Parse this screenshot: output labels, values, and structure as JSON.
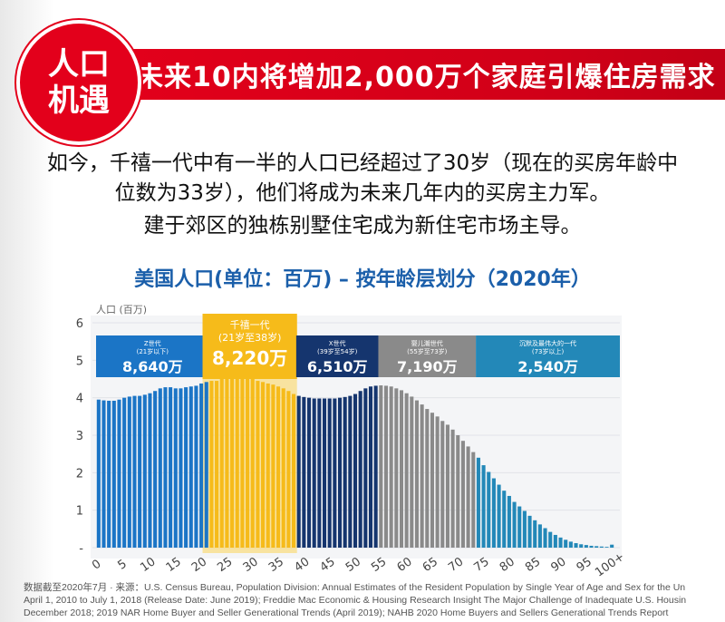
{
  "header": {
    "badge_line1": "人口",
    "badge_line2": "机遇",
    "title": "未来10内将增加2,000万个家庭引爆住房需求"
  },
  "intro": {
    "line1": "如今，千禧一代中有一半的人口已经超过了30岁（现在的买房年龄中",
    "line2": "位数为33岁），他们将成为未来几年内的买房主力军。",
    "line3": "建于郊区的独栋别墅住宅成为新住宅市场主导。"
  },
  "chart_data": {
    "type": "bar",
    "title": "美国人口(单位：百万) – 按年龄层划分（2020年）",
    "ylabel": "人口 (百万)",
    "ylim": [
      0,
      6
    ],
    "y_ticks": [
      "-",
      "1",
      "2",
      "3",
      "4",
      "5",
      "6"
    ],
    "x_ticks": [
      "0",
      "5",
      "10",
      "15",
      "20",
      "25",
      "30",
      "35",
      "40",
      "45",
      "50",
      "55",
      "60",
      "65",
      "70",
      "75",
      "80",
      "85",
      "90",
      "95",
      "100+"
    ],
    "categories": [
      "0",
      "1",
      "2",
      "3",
      "4",
      "5",
      "6",
      "7",
      "8",
      "9",
      "10",
      "11",
      "12",
      "13",
      "14",
      "15",
      "16",
      "17",
      "18",
      "19",
      "20",
      "21",
      "22",
      "23",
      "24",
      "25",
      "26",
      "27",
      "28",
      "29",
      "30",
      "31",
      "32",
      "33",
      "34",
      "35",
      "36",
      "37",
      "38",
      "39",
      "40",
      "41",
      "42",
      "43",
      "44",
      "45",
      "46",
      "47",
      "48",
      "49",
      "50",
      "51",
      "52",
      "53",
      "54",
      "55",
      "56",
      "57",
      "58",
      "59",
      "60",
      "61",
      "62",
      "63",
      "64",
      "65",
      "66",
      "67",
      "68",
      "69",
      "70",
      "71",
      "72",
      "73",
      "74",
      "75",
      "76",
      "77",
      "78",
      "79",
      "80",
      "81",
      "82",
      "83",
      "84",
      "85",
      "86",
      "87",
      "88",
      "89",
      "90",
      "91",
      "92",
      "93",
      "94",
      "95",
      "96",
      "97",
      "98",
      "99",
      "100+"
    ],
    "values": [
      3.95,
      3.93,
      3.92,
      3.92,
      3.95,
      4.0,
      4.03,
      4.05,
      4.05,
      4.08,
      4.12,
      4.18,
      4.25,
      4.28,
      4.28,
      4.25,
      4.25,
      4.28,
      4.3,
      4.32,
      4.38,
      4.42,
      4.45,
      4.45,
      4.5,
      4.6,
      4.62,
      4.62,
      4.6,
      4.55,
      4.5,
      4.45,
      4.42,
      4.38,
      4.35,
      4.3,
      4.25,
      4.18,
      4.1,
      4.05,
      4.02,
      4.0,
      3.98,
      3.98,
      3.98,
      3.98,
      3.98,
      4.0,
      4.02,
      4.05,
      4.1,
      4.18,
      4.25,
      4.3,
      4.32,
      4.33,
      4.32,
      4.3,
      4.25,
      4.2,
      4.12,
      4.03,
      3.93,
      3.82,
      3.7,
      3.6,
      3.5,
      3.38,
      3.28,
      3.15,
      3.0,
      2.85,
      2.7,
      2.55,
      2.4,
      2.2,
      2.02,
      1.85,
      1.68,
      1.52,
      1.38,
      1.22,
      1.1,
      0.98,
      0.85,
      0.73,
      0.62,
      0.52,
      0.42,
      0.34,
      0.27,
      0.21,
      0.16,
      0.12,
      0.09,
      0.07,
      0.05,
      0.04,
      0.03,
      0.02,
      0.08
    ],
    "generations": [
      {
        "name": "Z世代",
        "range": "(21岁以下)",
        "value": "8,640万",
        "color": "#1b75c6",
        "from": 0,
        "to": 21
      },
      {
        "name": "千禧一代",
        "range": "(21岁至38岁)",
        "value": "8,220万",
        "color": "#f6bb1a",
        "from": 21,
        "to": 38
      },
      {
        "name": "X世代",
        "range": "(39岁至54岁)",
        "value": "6,510万",
        "color": "#15356e",
        "from": 39,
        "to": 54
      },
      {
        "name": "婴儿潮世代",
        "range": "(55岁至73岁)",
        "value": "7,190万",
        "color": "#8a8a8a",
        "from": 55,
        "to": 73
      },
      {
        "name": "沉默及最伟大的一代",
        "range": "(73岁以上)",
        "value": "2,540万",
        "color": "#2388b8",
        "from": 74,
        "to": 100
      }
    ]
  },
  "footnote": {
    "line1": "数据截至2020年7月 · 来源：U.S. Census Bureau, Population Division: Annual Estimates of the Resident Population by Single Year of Age and Sex for the Un",
    "line2": "April 1, 2010 to July 1, 2018 (Release Date: June 2019); Freddie Mac Economic & Housing Research Insight The Major Challenge of Inadequate U.S. Housin",
    "line3": "December 2018; 2019 NAR Home Buyer and Seller Generational Trends (April 2019); NAHB 2020 Home Buyers and Sellers Generational Trends Report"
  }
}
